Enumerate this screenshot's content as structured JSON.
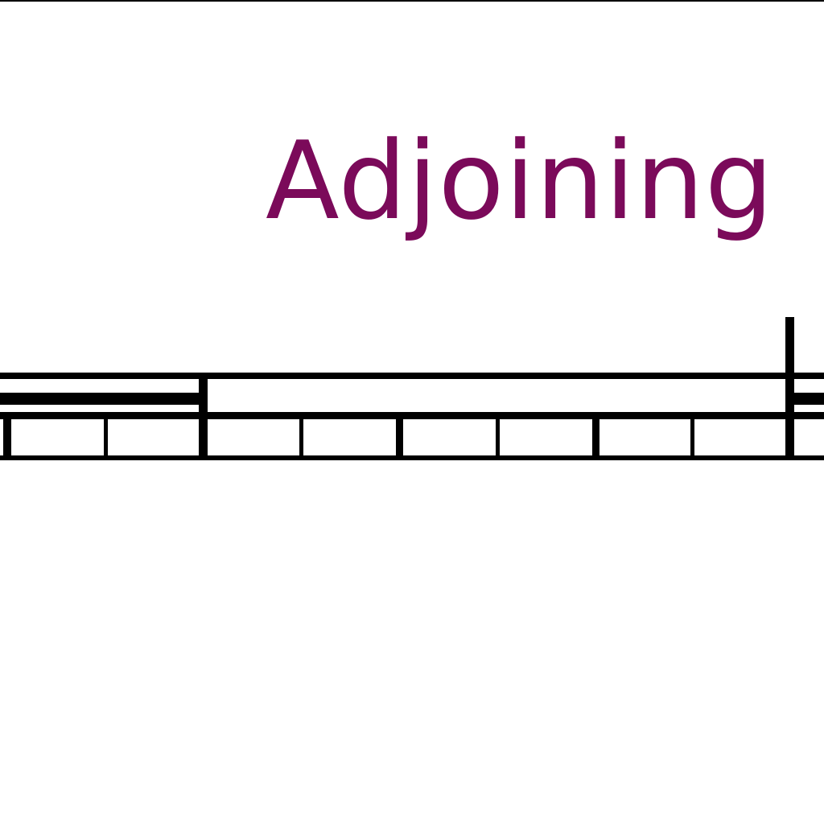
{
  "map": {
    "label": "Adjoining"
  },
  "colors": {
    "label": "#7b0a5a",
    "line": "#000000",
    "background": "#ffffff"
  }
}
